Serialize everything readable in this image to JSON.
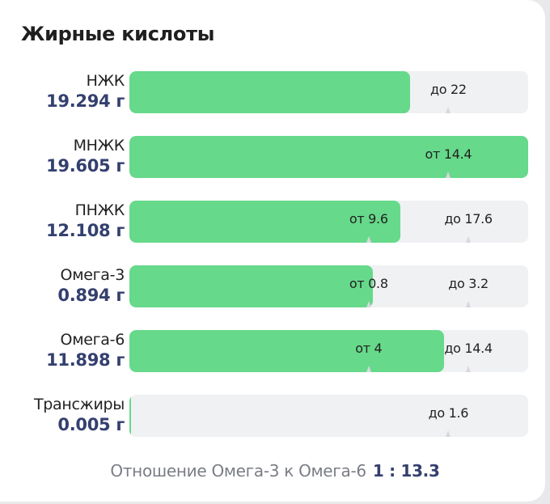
{
  "title": "Жирные кислоты",
  "colors": {
    "fill": "#66d98a",
    "track": "#f0f1f3",
    "value": "#34406f"
  },
  "rows": [
    {
      "name": "НЖК",
      "value": "19.294 г",
      "fill_pct": 70.4,
      "markers": [
        {
          "label": "до 22",
          "pos_pct": 80
        }
      ]
    },
    {
      "name": "МНЖК",
      "value": "19.605 г",
      "fill_pct": 100,
      "markers": [
        {
          "label": "от 14.4",
          "pos_pct": 80
        }
      ]
    },
    {
      "name": "ПНЖК",
      "value": "12.108 г",
      "fill_pct": 68,
      "markers": [
        {
          "label": "от 9.6",
          "pos_pct": 60
        },
        {
          "label": "до 17.6",
          "pos_pct": 85
        }
      ]
    },
    {
      "name": "Омега-3",
      "value": "0.894 г",
      "fill_pct": 61,
      "markers": [
        {
          "label": "от 0.8",
          "pos_pct": 60
        },
        {
          "label": "до 3.2",
          "pos_pct": 85
        }
      ]
    },
    {
      "name": "Омега-6",
      "value": "11.898 г",
      "fill_pct": 79,
      "markers": [
        {
          "label": "от 4",
          "pos_pct": 60
        },
        {
          "label": "до 14.4",
          "pos_pct": 85
        }
      ]
    },
    {
      "name": "Трансжиры",
      "value": "0.005 г",
      "fill_pct": 0.4,
      "markers": [
        {
          "label": "до 1.6",
          "pos_pct": 80
        }
      ]
    }
  ],
  "footer": {
    "label": "Отношение Омега-3 к Омега-6",
    "ratio": "1 : 13.3"
  }
}
